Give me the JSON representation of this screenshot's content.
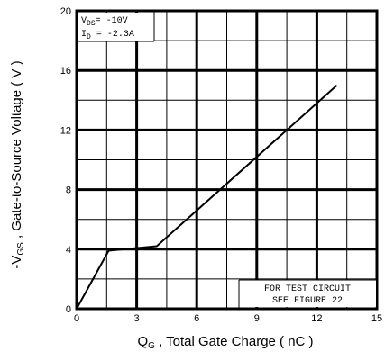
{
  "chart_data": {
    "type": "line",
    "xlabel": {
      "prefix": "Q",
      "sub": "G",
      "rest": " , Total Gate Charge ( nC )"
    },
    "ylabel": {
      "prefix": "-V",
      "sub": "GS",
      "rest": " , Gate-to-Source Voltage ( V )"
    },
    "xlim": [
      0,
      15
    ],
    "ylim": [
      0,
      20
    ],
    "x_ticks": [
      "0",
      "3",
      "6",
      "9",
      "12",
      "15"
    ],
    "x_tick_values": [
      0,
      3,
      6,
      9,
      12,
      15
    ],
    "y_ticks": [
      "0",
      "4",
      "8",
      "12",
      "16",
      "20"
    ],
    "y_tick_values": [
      0,
      4,
      8,
      12,
      16,
      20
    ],
    "grid": true,
    "major_x_step": 3,
    "minor_x_step": 1.5,
    "major_y_step": 4,
    "minor_y_step": 2,
    "series": [
      {
        "x": [
          0,
          1.6,
          4.0,
          13.0
        ],
        "y": [
          0,
          3.9,
          4.2,
          15.0
        ]
      }
    ],
    "annotations": {
      "conditions": [
        {
          "prefix": "V",
          "sub": "DS",
          "rest": "= -10V"
        },
        {
          "prefix": "I",
          "sub": "D",
          "rest": " = -2.3A"
        }
      ],
      "note": [
        "FOR TEST CIRCUIT",
        "SEE FIGURE 22"
      ]
    }
  }
}
